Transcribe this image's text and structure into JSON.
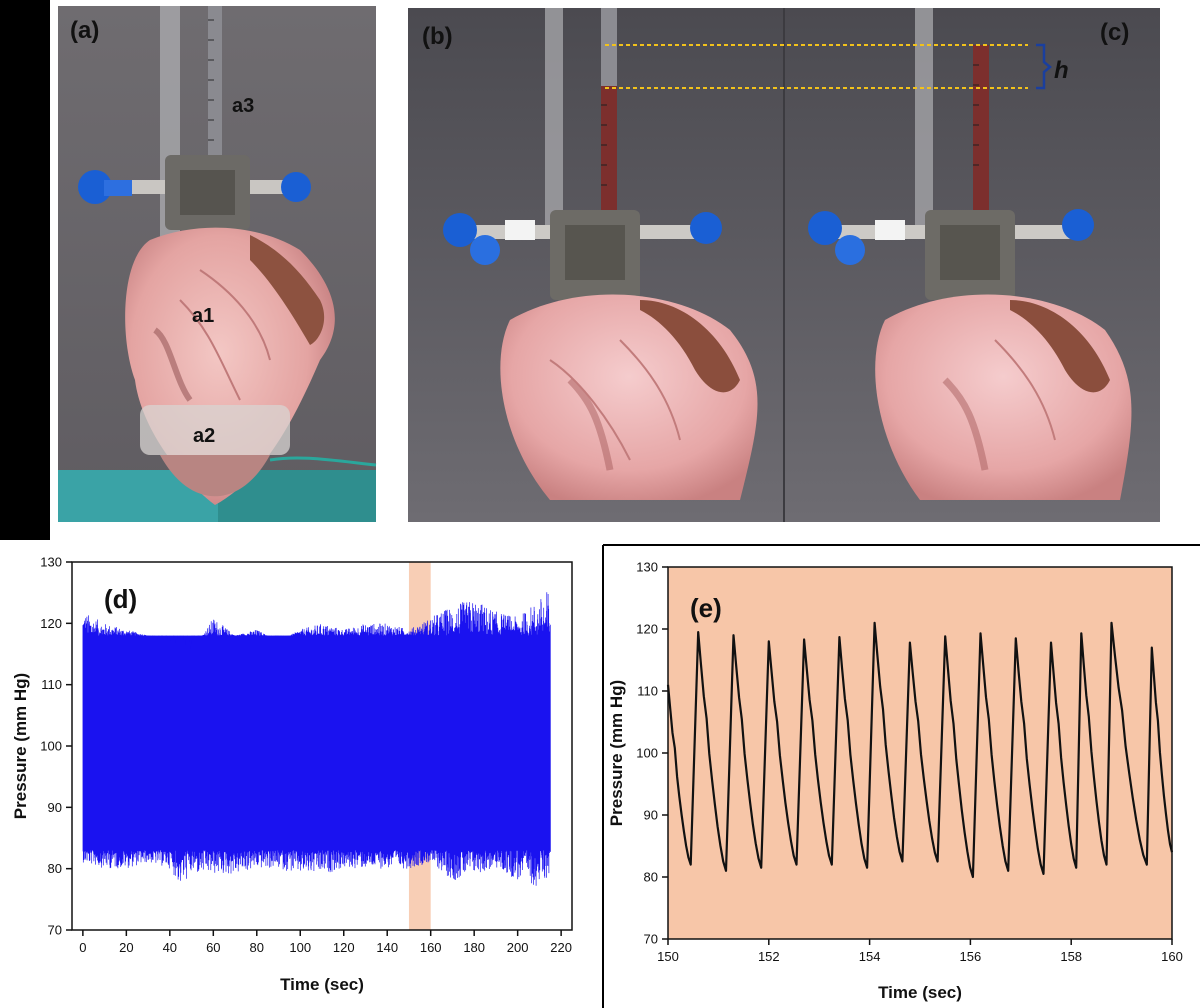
{
  "figure": {
    "panels": {
      "a": {
        "label": "(a)",
        "annotations": [
          "a3",
          "a1",
          "a2"
        ],
        "image": "isolated-heart-mounted-on-cannula-photo"
      },
      "b": {
        "label": "(b)",
        "image": "heart-with-column-at-lower-level-photo"
      },
      "c": {
        "label": "(c)",
        "image": "heart-with-column-at-higher-level-photo"
      },
      "h_label": "h"
    },
    "colors": {
      "trace_d": "#1a12f0",
      "trace_e": "#111111",
      "highlight": "#f7c6a8",
      "bracket": "#1a3f9e",
      "guide": "#f2c21b"
    }
  },
  "chart_data": [
    {
      "id": "d",
      "type": "line",
      "panel_label": "(d)",
      "xlabel": "Time (sec)",
      "ylabel": "Pressure (mm Hg)",
      "xlim": [
        -5,
        225
      ],
      "ylim": [
        70,
        130
      ],
      "xticks": [
        0,
        20,
        40,
        60,
        80,
        100,
        120,
        140,
        160,
        180,
        200,
        220
      ],
      "yticks": [
        70,
        80,
        90,
        100,
        110,
        120,
        130
      ],
      "highlight_region": [
        150,
        160
      ],
      "series": [
        {
          "envelope_x": [
            0,
            10,
            20,
            30,
            40,
            45,
            50,
            60,
            70,
            80,
            90,
            100,
            110,
            120,
            130,
            140,
            150,
            160,
            170,
            180,
            190,
            200,
            210,
            215
          ],
          "envelope_max": [
            122,
            120,
            119,
            118,
            116,
            117,
            115,
            121,
            118,
            119,
            117,
            119,
            120,
            119,
            120,
            120,
            119,
            121,
            123,
            124,
            122,
            121,
            124,
            126
          ],
          "envelope_min": [
            81,
            80,
            80,
            81,
            80,
            77,
            79,
            79,
            79,
            80,
            80,
            79,
            79,
            80,
            80,
            80,
            80,
            81,
            78,
            79,
            80,
            78,
            77,
            79
          ],
          "dense_band": [
            83,
            118
          ]
        }
      ]
    },
    {
      "id": "e",
      "type": "line",
      "panel_label": "(e)",
      "xlabel": "Time (sec)",
      "ylabel": "Pressure (mm Hg)",
      "xlim": [
        150,
        160
      ],
      "ylim": [
        70,
        130
      ],
      "xticks": [
        150,
        152,
        154,
        156,
        158,
        160
      ],
      "yticks": [
        70,
        80,
        90,
        100,
        110,
        120,
        130
      ],
      "background": "highlighted",
      "series": [
        {
          "peaks": [
            [
              150.6,
              119.5
            ],
            [
              151.3,
              119
            ],
            [
              152.0,
              118
            ],
            [
              152.7,
              118.3
            ],
            [
              153.4,
              118.7
            ],
            [
              154.1,
              121
            ],
            [
              154.8,
              117.8
            ],
            [
              155.5,
              118.8
            ],
            [
              156.2,
              119.3
            ],
            [
              156.9,
              118.5
            ],
            [
              157.6,
              117.8
            ],
            [
              158.2,
              119.3
            ],
            [
              158.8,
              121
            ],
            [
              159.6,
              117
            ]
          ],
          "troughs": [
            [
              150.45,
              82
            ],
            [
              151.15,
              81
            ],
            [
              151.85,
              81.5
            ],
            [
              152.55,
              82
            ],
            [
              153.25,
              82
            ],
            [
              153.95,
              81.5
            ],
            [
              154.65,
              82.5
            ],
            [
              155.35,
              82.5
            ],
            [
              156.05,
              80
            ],
            [
              156.75,
              81
            ],
            [
              157.45,
              80.5
            ],
            [
              158.1,
              81.5
            ],
            [
              158.7,
              82
            ],
            [
              159.5,
              82
            ],
            [
              160.0,
              84
            ]
          ],
          "start": [
            150.0,
            111
          ]
        }
      ]
    }
  ]
}
